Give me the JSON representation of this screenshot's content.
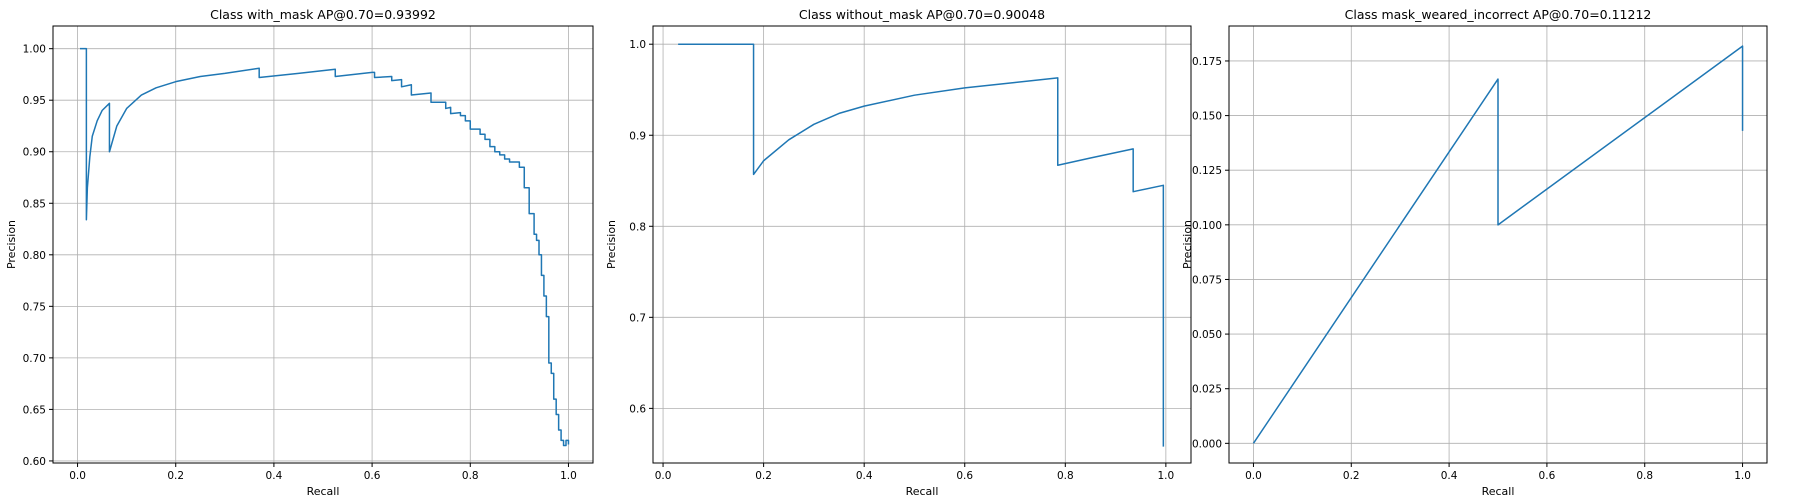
{
  "chart_data": [
    {
      "type": "line",
      "title": "Class with_mask AP@0.70=0.93992",
      "xlabel": "Recall",
      "ylabel": "Precision",
      "xlim": [
        -0.05,
        1.05
      ],
      "ylim": [
        0.598,
        1.022
      ],
      "xticks": [
        0.0,
        0.2,
        0.4,
        0.6,
        0.8,
        1.0
      ],
      "xtick_labels": [
        "0.0",
        "0.2",
        "0.4",
        "0.6",
        "0.8",
        "1.0"
      ],
      "yticks": [
        0.6,
        0.65,
        0.7,
        0.75,
        0.8,
        0.85,
        0.9,
        0.95,
        1.0
      ],
      "ytick_labels": [
        "0.60",
        "0.65",
        "0.70",
        "0.75",
        "0.80",
        "0.85",
        "0.90",
        "0.95",
        "1.00"
      ],
      "grid": true,
      "line_color": "#1f77b4",
      "series": [
        {
          "x": [
            0.005,
            0.018,
            0.018,
            0.02,
            0.025,
            0.03,
            0.04,
            0.05,
            0.065,
            0.065,
            0.08,
            0.1,
            0.13,
            0.16,
            0.2,
            0.25,
            0.3,
            0.37,
            0.37,
            0.45,
            0.525,
            0.525,
            0.6,
            0.605,
            0.605,
            0.64,
            0.64,
            0.66,
            0.66,
            0.68,
            0.68,
            0.72,
            0.72,
            0.75,
            0.75,
            0.76,
            0.76,
            0.78,
            0.78,
            0.79,
            0.79,
            0.8,
            0.8,
            0.82,
            0.82,
            0.83,
            0.83,
            0.84,
            0.84,
            0.85,
            0.85,
            0.86,
            0.86,
            0.87,
            0.87,
            0.88,
            0.88,
            0.9,
            0.9,
            0.91,
            0.91,
            0.92,
            0.92,
            0.93,
            0.93,
            0.935,
            0.935,
            0.94,
            0.94,
            0.945,
            0.945,
            0.95,
            0.95,
            0.955,
            0.955,
            0.96,
            0.96,
            0.965,
            0.965,
            0.97,
            0.97,
            0.975,
            0.975,
            0.98,
            0.98,
            0.985,
            0.985,
            0.99,
            0.99,
            0.995,
            0.995,
            1.0,
            1.0
          ],
          "y": [
            1.0,
            1.0,
            0.834,
            0.865,
            0.895,
            0.915,
            0.93,
            0.94,
            0.947,
            0.9,
            0.925,
            0.942,
            0.955,
            0.962,
            0.968,
            0.973,
            0.976,
            0.981,
            0.972,
            0.976,
            0.98,
            0.973,
            0.977,
            0.977,
            0.972,
            0.973,
            0.969,
            0.97,
            0.963,
            0.965,
            0.955,
            0.957,
            0.948,
            0.948,
            0.942,
            0.943,
            0.937,
            0.938,
            0.935,
            0.935,
            0.93,
            0.93,
            0.922,
            0.922,
            0.917,
            0.917,
            0.912,
            0.912,
            0.905,
            0.905,
            0.9,
            0.9,
            0.897,
            0.897,
            0.893,
            0.893,
            0.89,
            0.89,
            0.885,
            0.885,
            0.865,
            0.865,
            0.84,
            0.84,
            0.82,
            0.82,
            0.814,
            0.814,
            0.8,
            0.8,
            0.78,
            0.78,
            0.76,
            0.76,
            0.74,
            0.74,
            0.695,
            0.695,
            0.685,
            0.685,
            0.66,
            0.66,
            0.645,
            0.645,
            0.63,
            0.63,
            0.62,
            0.62,
            0.615,
            0.615,
            0.62,
            0.62,
            0.616
          ]
        }
      ]
    },
    {
      "type": "line",
      "title": "Class without_mask AP@0.70=0.90048",
      "xlabel": "Recall",
      "ylabel": "Precision",
      "xlim": [
        -0.02,
        1.05
      ],
      "ylim": [
        0.54,
        1.02
      ],
      "xticks": [
        0.0,
        0.2,
        0.4,
        0.6,
        0.8,
        1.0
      ],
      "xtick_labels": [
        "0.0",
        "0.2",
        "0.4",
        "0.6",
        "0.8",
        "1.0"
      ],
      "yticks": [
        0.6,
        0.7,
        0.8,
        0.9,
        1.0
      ],
      "ytick_labels": [
        "0.6",
        "0.7",
        "0.8",
        "0.9",
        "1.0"
      ],
      "grid": true,
      "line_color": "#1f77b4",
      "series": [
        {
          "x": [
            0.03,
            0.18,
            0.18,
            0.2,
            0.25,
            0.3,
            0.35,
            0.4,
            0.5,
            0.6,
            0.7,
            0.785,
            0.785,
            0.85,
            0.935,
            0.935,
            0.995,
            0.995
          ],
          "y": [
            1.0,
            1.0,
            0.857,
            0.872,
            0.895,
            0.912,
            0.924,
            0.932,
            0.944,
            0.952,
            0.958,
            0.963,
            0.867,
            0.875,
            0.885,
            0.838,
            0.845,
            0.558
          ]
        }
      ]
    },
    {
      "type": "line",
      "title": "Class mask_weared_incorrect AP@0.70=0.11212",
      "xlabel": "Recall",
      "ylabel": "Precision",
      "xlim": [
        -0.05,
        1.05
      ],
      "ylim": [
        -0.009,
        0.191
      ],
      "xticks": [
        0.0,
        0.2,
        0.4,
        0.6,
        0.8,
        1.0
      ],
      "xtick_labels": [
        "0.0",
        "0.2",
        "0.4",
        "0.6",
        "0.8",
        "1.0"
      ],
      "yticks": [
        0.0,
        0.025,
        0.05,
        0.075,
        0.1,
        0.125,
        0.15,
        0.175
      ],
      "ytick_labels": [
        "0.000",
        "0.025",
        "0.050",
        "0.075",
        "0.100",
        "0.125",
        "0.150",
        "0.175"
      ],
      "grid": true,
      "line_color": "#1f77b4",
      "series": [
        {
          "x": [
            0.0,
            0.5,
            0.5,
            1.0,
            1.0
          ],
          "y": [
            0.0,
            0.1667,
            0.1,
            0.1818,
            0.143
          ]
        }
      ]
    }
  ]
}
